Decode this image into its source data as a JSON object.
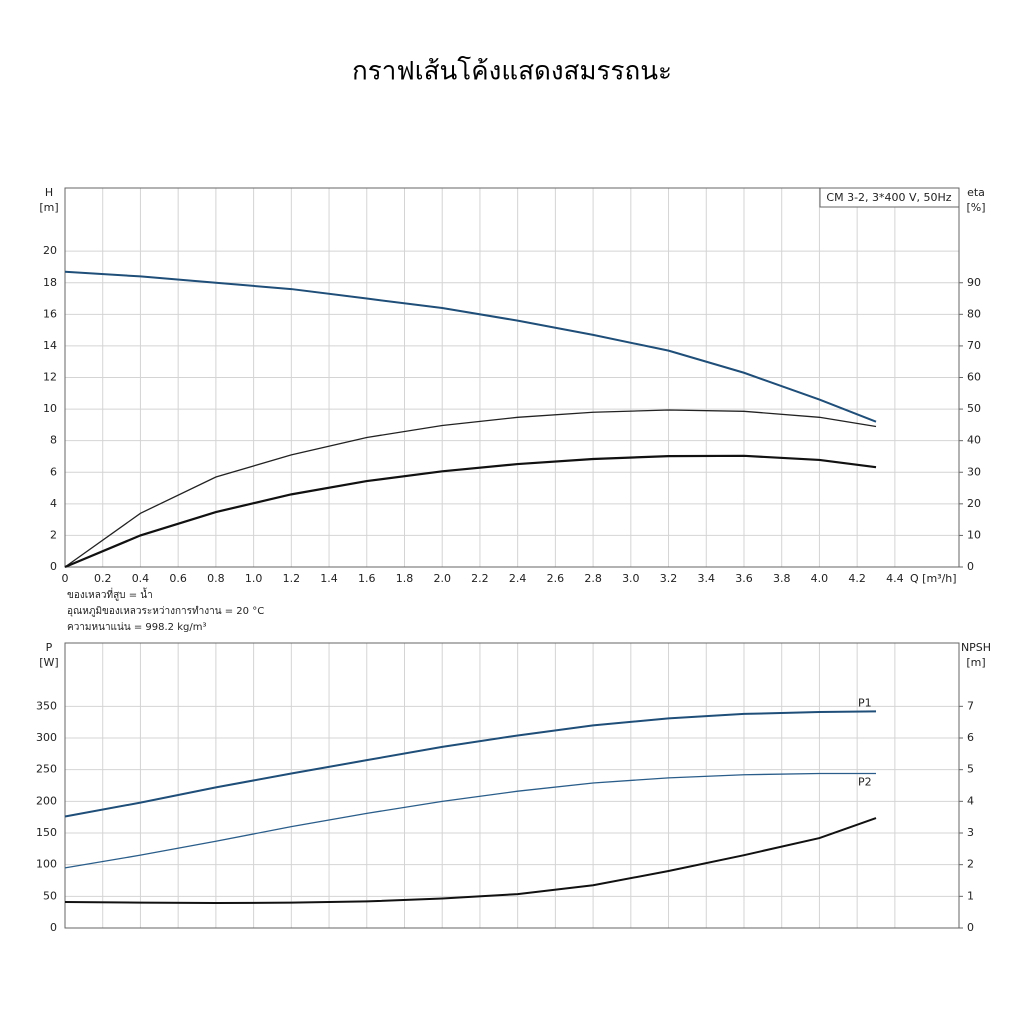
{
  "title": "กราฟเส้นโค้งแสดงสมรรถนะ",
  "chart_data": [
    {
      "type": "line",
      "model_label": "CM 3-2, 3*400 V, 50Hz",
      "y_label": [
        "H",
        "[m]"
      ],
      "y2_label": [
        "eta",
        "[%]"
      ],
      "x_label": "Q [m³/h]",
      "annotations": [
        "ของเหลวที่สูบ = น้ำ",
        "อุณหภูมิของเหลวระหว่างการทำงาน = 20 °C",
        "ความหนาแน่น = 998.2 kg/m³"
      ],
      "x": [
        0,
        0.4,
        0.8,
        1.2,
        1.6,
        2.0,
        2.4,
        2.8,
        3.2,
        3.6,
        4.0,
        4.3
      ],
      "series": [
        {
          "color": "#1f4e79",
          "width": 2,
          "values": [
            18.7,
            18.4,
            18.0,
            17.6,
            17.0,
            16.4,
            15.6,
            14.7,
            13.7,
            12.3,
            10.6,
            9.2
          ]
        },
        {
          "color": "#222222",
          "width": 1.3,
          "axis": "y2",
          "values": [
            0,
            17,
            28.5,
            35.5,
            41,
            44.8,
            47.4,
            49,
            49.7,
            49.3,
            47.4,
            44.5
          ]
        },
        {
          "color": "#111111",
          "width": 2.2,
          "axis": "y2",
          "values": [
            0,
            10,
            17.4,
            23,
            27.2,
            30.3,
            32.6,
            34.2,
            35.1,
            35.2,
            33.9,
            31.6
          ]
        }
      ],
      "xlim": [
        0,
        4.74
      ],
      "xticks": [
        0,
        0.2,
        0.4,
        0.6,
        0.8,
        {
          "value": 1,
          "label": "1.0"
        },
        1.2,
        1.4,
        1.6,
        1.8,
        {
          "value": 2,
          "label": "2.0"
        },
        2.2,
        2.4,
        2.6,
        2.8,
        {
          "value": 3,
          "label": "3.0"
        },
        3.2,
        3.4,
        3.6,
        3.8,
        {
          "value": 4,
          "label": "4.0"
        },
        4.2,
        4.4
      ],
      "ylim": [
        0,
        24
      ],
      "yticks": [
        0,
        2,
        4,
        6,
        8,
        10,
        12,
        14,
        16,
        18,
        20
      ],
      "y2lim": [
        0,
        120
      ],
      "y2ticks": [
        0,
        10,
        20,
        30,
        40,
        50,
        60,
        70,
        80,
        90
      ],
      "grid": true
    },
    {
      "type": "line",
      "y_label": [
        "P",
        "[W]"
      ],
      "y2_label": [
        "NPSH",
        "[m]"
      ],
      "x": [
        0,
        0.4,
        0.8,
        1.2,
        1.6,
        2.0,
        2.4,
        2.8,
        3.2,
        3.6,
        4.0,
        4.3
      ],
      "series": [
        {
          "name": "P1",
          "color": "#1f4e79",
          "width": 2,
          "values": [
            176,
            198,
            222,
            244,
            265,
            286,
            304,
            320,
            331,
            338,
            341,
            342
          ]
        },
        {
          "name": "P2",
          "color": "#2a5d8a",
          "width": 1.3,
          "values": [
            95,
            115,
            137,
            160,
            181,
            200,
            216,
            229,
            237,
            242,
            244,
            244
          ]
        },
        {
          "color": "#111111",
          "width": 2,
          "axis": "y2",
          "values": [
            0.82,
            0.8,
            0.79,
            0.8,
            0.84,
            0.93,
            1.07,
            1.35,
            1.8,
            2.3,
            2.84,
            3.47
          ]
        }
      ],
      "xlim": [
        0,
        4.74
      ],
      "ylim": [
        0,
        450
      ],
      "yticks": [
        0,
        50,
        100,
        150,
        200,
        250,
        300,
        350
      ],
      "y2lim": [
        0,
        9
      ],
      "y2ticks": [
        0,
        1,
        2,
        3,
        4,
        5,
        6,
        7
      ],
      "grid": true
    }
  ]
}
